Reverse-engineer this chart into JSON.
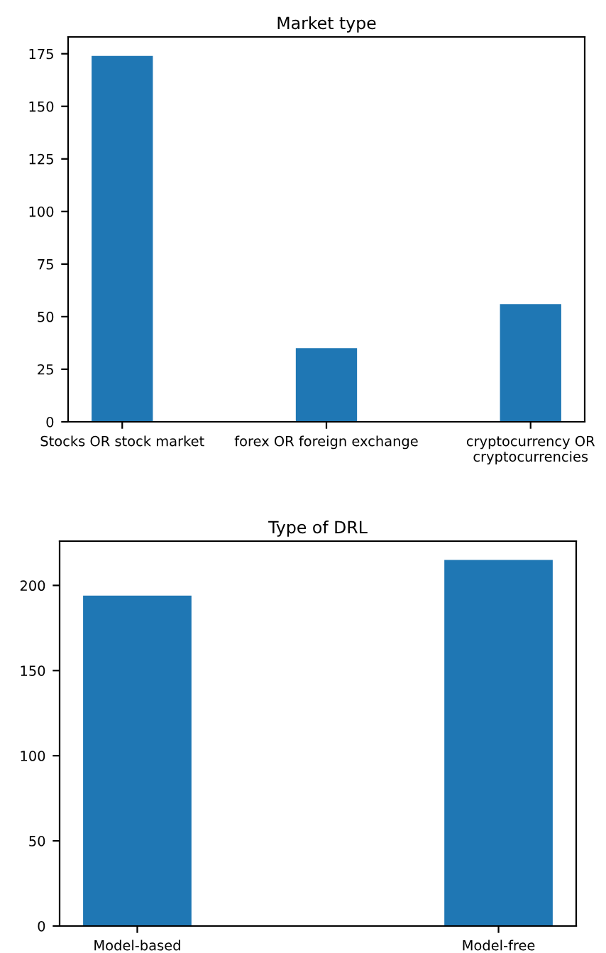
{
  "chart_data": [
    {
      "type": "bar",
      "title": "Market type",
      "categories": [
        "Stocks OR stock market",
        "forex OR foreign exchange",
        "cryptocurrency OR\ncryptocurrencies"
      ],
      "values": [
        174,
        35,
        56
      ],
      "color": "#1f77b4",
      "ylim": [
        0,
        183
      ],
      "yticks": [
        0,
        25,
        50,
        75,
        100,
        125,
        150,
        175
      ],
      "grid": false
    },
    {
      "type": "bar",
      "title": "Type of DRL",
      "categories": [
        "Model-based",
        "Model-free"
      ],
      "values": [
        194,
        215
      ],
      "color": "#1f77b4",
      "ylim": [
        0,
        226
      ],
      "yticks": [
        0,
        50,
        100,
        150,
        200
      ],
      "grid": false
    }
  ]
}
